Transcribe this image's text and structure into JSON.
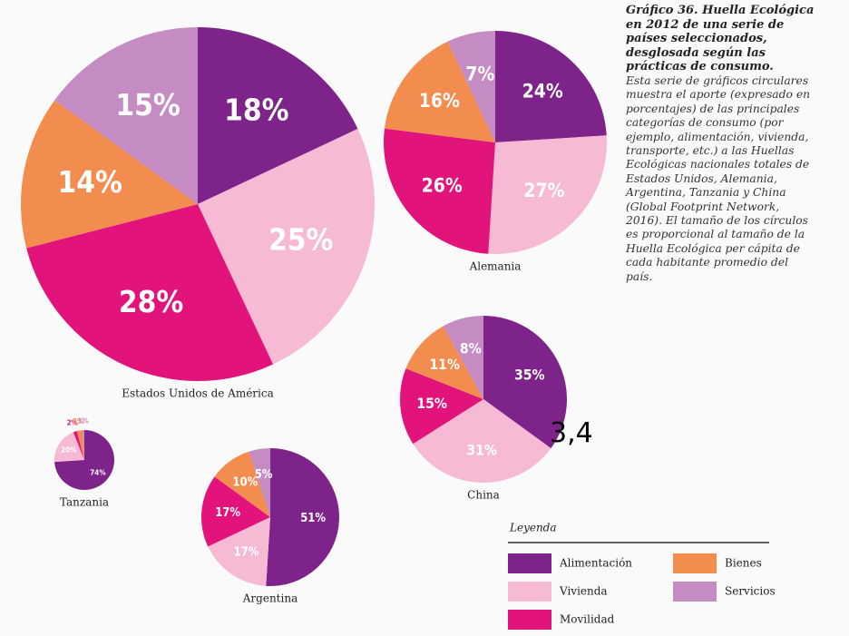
{
  "caption": {
    "title": "Gráfico 36. Huella Ecológica en 2012 de una serie de países seleccionados, desglosada según las prácticas de consumo.",
    "body": "Esta serie de gráficos circulares muestra el aporte (expresado en porcentajes) de las principales categorías de consumo (por ejemplo, alimentación, vivienda, transporte, etc.) a las Huellas Ecológicas nacionales totales de Estados Unidos, Alemania, Argentina, Tanzania y China (Global Footprint Network, 2016). El tamaño de los círculos es proporcional al tamaño de la Huella Ecológica per cápita de cada habitante promedio del país."
  },
  "annotation": "3,4",
  "legend_title": "Leyenda",
  "chart_data": [
    {
      "type": "pie",
      "title": "Estados Unidos de América",
      "categories": [
        "Alimentación",
        "Vivienda",
        "Movilidad",
        "Bienes",
        "Servicios"
      ],
      "colors": [
        "#7d2389",
        "#f6bad5",
        "#e2147c",
        "#f28d4f",
        "#c58cc4"
      ],
      "values": [
        18,
        25,
        28,
        14,
        15
      ],
      "value_labels": [
        "18%",
        "25%",
        "28%",
        "14%",
        "15%"
      ]
    },
    {
      "type": "pie",
      "title": "Alemania",
      "categories": [
        "Alimentación",
        "Vivienda",
        "Movilidad",
        "Bienes",
        "Servicios"
      ],
      "colors": [
        "#7d2389",
        "#f6bad5",
        "#e2147c",
        "#f28d4f",
        "#c58cc4"
      ],
      "values": [
        24,
        27,
        26,
        16,
        7
      ],
      "value_labels": [
        "24%",
        "27%",
        "26%",
        "16%",
        "7%"
      ]
    },
    {
      "type": "pie",
      "title": "China",
      "categories": [
        "Alimentación",
        "Vivienda",
        "Movilidad",
        "Bienes",
        "Servicios"
      ],
      "colors": [
        "#7d2389",
        "#f6bad5",
        "#e2147c",
        "#f28d4f",
        "#c58cc4"
      ],
      "values": [
        35,
        31,
        15,
        11,
        8
      ],
      "value_labels": [
        "35%",
        "31%",
        "15%",
        "11%",
        "8%"
      ]
    },
    {
      "type": "pie",
      "title": "Tanzania",
      "categories": [
        "Alimentación",
        "Vivienda",
        "Movilidad",
        "Bienes",
        "Servicios"
      ],
      "colors": [
        "#7d2389",
        "#f6bad5",
        "#e2147c",
        "#f28d4f",
        "#c58cc4"
      ],
      "values": [
        74,
        20,
        2,
        3,
        1
      ],
      "value_labels": [
        "74%",
        "20%",
        "2%",
        "3%",
        "1%"
      ]
    },
    {
      "type": "pie",
      "title": "Argentina",
      "categories": [
        "Alimentación",
        "Vivienda",
        "Movilidad",
        "Bienes",
        "Servicios"
      ],
      "colors": [
        "#7d2389",
        "#f6bad5",
        "#e2147c",
        "#f28d4f",
        "#c58cc4"
      ],
      "values": [
        51,
        17,
        17,
        10,
        5
      ],
      "value_labels": [
        "51%",
        "17%",
        "17%",
        "10%",
        "5%"
      ]
    }
  ]
}
